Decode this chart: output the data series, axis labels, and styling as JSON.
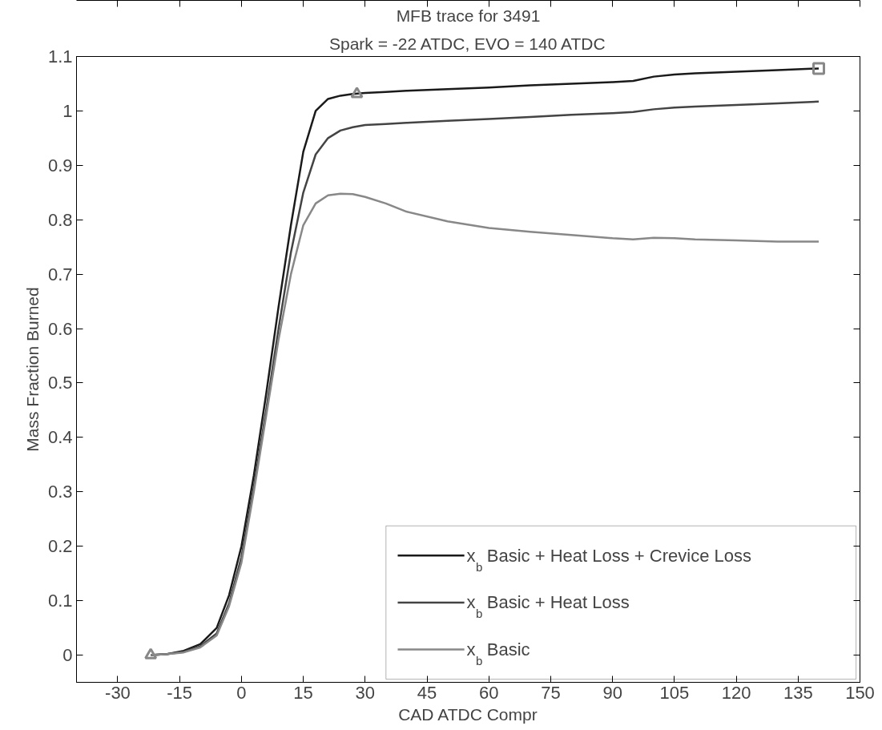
{
  "chart_data": {
    "type": "line",
    "title": "MFB trace for 3491",
    "subtitle": "Spark = -22 ATDC, EVO = 140 ATDC",
    "xlabel": "CAD ATDC Compr",
    "ylabel": "Mass Fraction Burned",
    "x": [
      -22,
      -18,
      -14,
      -10,
      -6,
      -3,
      0,
      3,
      6,
      9,
      12,
      15,
      18,
      21,
      24,
      27,
      30,
      35,
      40,
      50,
      60,
      70,
      80,
      90,
      95,
      100,
      105,
      110,
      120,
      130,
      140
    ],
    "series": [
      {
        "name": "x$_{b}$ Basic + Heat Loss + Crevice Loss",
        "color": "#1a1a1a",
        "values": [
          0,
          0.002,
          0.008,
          0.02,
          0.05,
          0.11,
          0.2,
          0.33,
          0.48,
          0.64,
          0.79,
          0.925,
          1.0,
          1.022,
          1.028,
          1.031,
          1.033,
          1.035,
          1.037,
          1.04,
          1.043,
          1.047,
          1.05,
          1.053,
          1.055,
          1.063,
          1.067,
          1.069,
          1.072,
          1.075,
          1.078
        ]
      },
      {
        "name": "x$_{b}$ Basic + Heat Loss",
        "color": "#444444",
        "values": [
          0,
          0.002,
          0.006,
          0.016,
          0.04,
          0.095,
          0.18,
          0.31,
          0.45,
          0.6,
          0.74,
          0.85,
          0.92,
          0.95,
          0.964,
          0.97,
          0.974,
          0.976,
          0.978,
          0.982,
          0.985,
          0.989,
          0.993,
          0.996,
          0.998,
          1.003,
          1.006,
          1.008,
          1.011,
          1.014,
          1.017
        ]
      },
      {
        "name": "x$_{b}$ Basic",
        "color": "#888888",
        "values": [
          0,
          0.002,
          0.005,
          0.014,
          0.036,
          0.09,
          0.17,
          0.3,
          0.44,
          0.58,
          0.7,
          0.79,
          0.83,
          0.845,
          0.848,
          0.847,
          0.842,
          0.83,
          0.815,
          0.797,
          0.785,
          0.778,
          0.772,
          0.766,
          0.764,
          0.767,
          0.766,
          0.764,
          0.762,
          0.76,
          0.76
        ]
      },
      {
        "type": "scatter",
        "marker": "triangle",
        "color": "#888888",
        "x": [
          -22
        ],
        "values": [
          0
        ]
      },
      {
        "type": "scatter",
        "marker": "triangle",
        "color": "#888888",
        "x": [
          28
        ],
        "values": [
          1.031
        ]
      },
      {
        "type": "scatter",
        "marker": "square",
        "color": "#888888",
        "x": [
          140
        ],
        "values": [
          1.078
        ]
      }
    ],
    "xlim": [
      -40,
      150
    ],
    "xticks": [
      -30,
      -15,
      0,
      15,
      30,
      45,
      60,
      75,
      90,
      105,
      120,
      135,
      150
    ],
    "ylim": [
      -0.05,
      1.1
    ],
    "yticks": [
      0,
      0.1,
      0.2,
      0.3,
      0.4,
      0.5,
      0.6,
      0.7,
      0.8,
      0.9,
      1,
      1.1
    ],
    "legend": "bottom right",
    "grid": false
  }
}
